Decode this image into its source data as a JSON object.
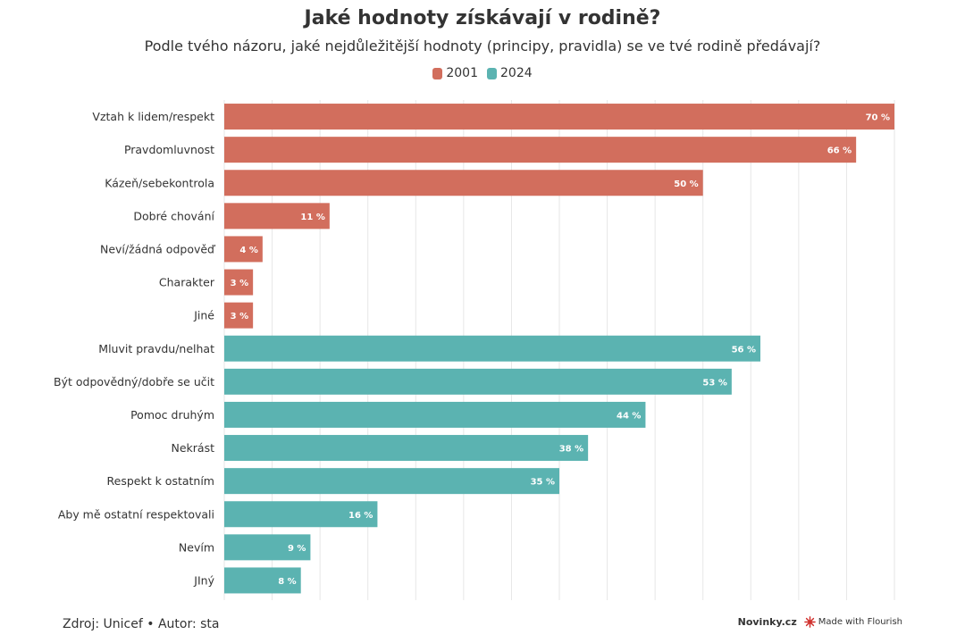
{
  "header": {
    "title": "Jaké hodnoty získávají v rodině?",
    "subtitle": "Podle tvého názoru, jaké nejdůležitější hodnoty (principy, pravidla) se ve tvé rodině předávají?"
  },
  "legend": [
    {
      "label": "2001",
      "color": "#d26e5d"
    },
    {
      "label": "2024",
      "color": "#5bb3b1"
    }
  ],
  "chart_data": {
    "type": "bar",
    "orientation": "horizontal",
    "xlim": [
      0,
      70
    ],
    "grid": true,
    "legend_placement": "top-center",
    "value_suffix": " %",
    "series": [
      {
        "name": "2001",
        "color": "#d26e5d",
        "categories": [
          "Vztah k lidem/respekt",
          "Pravdomluvnost",
          "Kázeň/sebekontrola",
          "Dobré chování",
          "Neví/žádná odpověď",
          "Charakter",
          "Jiné"
        ],
        "values": [
          70,
          66,
          50,
          11,
          4,
          3,
          3
        ]
      },
      {
        "name": "2024",
        "color": "#5bb3b1",
        "categories": [
          "Mluvit pravdu/nelhat",
          "Být odpovědný/dobře se učit",
          "Pomoc druhým",
          "Nekrást",
          "Respekt k ostatním",
          "Aby mě ostatní respektovali",
          "Nevím",
          "JIný"
        ],
        "values": [
          56,
          53,
          44,
          38,
          35,
          16,
          9,
          8
        ]
      }
    ]
  },
  "footer": {
    "source": "Zdroj: Unicef • Autor: sta",
    "brand": "Novinky.cz",
    "flourish": "Made with Flourish"
  }
}
